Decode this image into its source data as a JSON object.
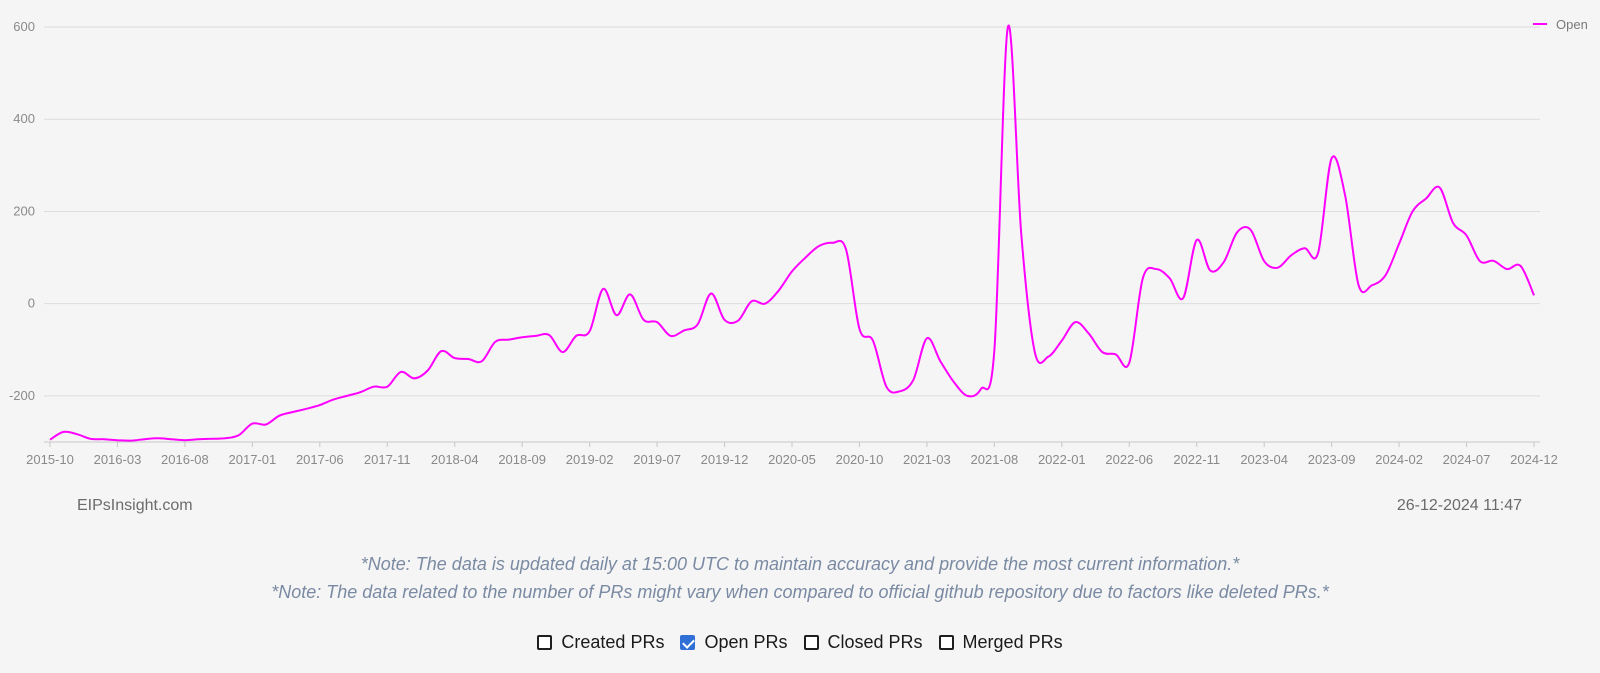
{
  "chart_data": {
    "type": "line",
    "series": [
      {
        "name": "Open",
        "color": "#ff00ff",
        "points": [
          [
            "2015-10",
            -295
          ],
          [
            "2015-11",
            -278
          ],
          [
            "2015-12",
            -283
          ],
          [
            "2016-01",
            -293
          ],
          [
            "2016-02",
            -294
          ],
          [
            "2016-03",
            -296
          ],
          [
            "2016-04",
            -297
          ],
          [
            "2016-05",
            -294
          ],
          [
            "2016-06",
            -292
          ],
          [
            "2016-07",
            -294
          ],
          [
            "2016-08",
            -296
          ],
          [
            "2016-09",
            -294
          ],
          [
            "2016-10",
            -293
          ],
          [
            "2016-11",
            -292
          ],
          [
            "2016-12",
            -285
          ],
          [
            "2017-01",
            -260
          ],
          [
            "2017-02",
            -262
          ],
          [
            "2017-03",
            -243
          ],
          [
            "2017-04",
            -235
          ],
          [
            "2017-05",
            -228
          ],
          [
            "2017-06",
            -220
          ],
          [
            "2017-07",
            -208
          ],
          [
            "2017-08",
            -200
          ],
          [
            "2017-09",
            -192
          ],
          [
            "2017-10",
            -180
          ],
          [
            "2017-11",
            -180
          ],
          [
            "2017-12",
            -148
          ],
          [
            "2018-01",
            -162
          ],
          [
            "2018-02",
            -145
          ],
          [
            "2018-03",
            -103
          ],
          [
            "2018-04",
            -118
          ],
          [
            "2018-05",
            -120
          ],
          [
            "2018-06",
            -125
          ],
          [
            "2018-07",
            -83
          ],
          [
            "2018-08",
            -78
          ],
          [
            "2018-09",
            -73
          ],
          [
            "2018-10",
            -70
          ],
          [
            "2018-11",
            -68
          ],
          [
            "2018-12",
            -105
          ],
          [
            "2019-01",
            -70
          ],
          [
            "2019-02",
            -60
          ],
          [
            "2019-03",
            32
          ],
          [
            "2019-04",
            -25
          ],
          [
            "2019-05",
            20
          ],
          [
            "2019-06",
            -35
          ],
          [
            "2019-07",
            -40
          ],
          [
            "2019-08",
            -70
          ],
          [
            "2019-09",
            -58
          ],
          [
            "2019-10",
            -45
          ],
          [
            "2019-11",
            22
          ],
          [
            "2019-12",
            -35
          ],
          [
            "2020-01",
            -37
          ],
          [
            "2020-02",
            5
          ],
          [
            "2020-03",
            0
          ],
          [
            "2020-04",
            28
          ],
          [
            "2020-05",
            70
          ],
          [
            "2020-06",
            100
          ],
          [
            "2020-07",
            125
          ],
          [
            "2020-08",
            132
          ],
          [
            "2020-09",
            118
          ],
          [
            "2020-10",
            -55
          ],
          [
            "2020-11",
            -80
          ],
          [
            "2020-12",
            -180
          ],
          [
            "2021-01",
            -190
          ],
          [
            "2021-02",
            -165
          ],
          [
            "2021-03",
            -75
          ],
          [
            "2021-04",
            -125
          ],
          [
            "2021-05",
            -170
          ],
          [
            "2021-06",
            -200
          ],
          [
            "2021-07",
            -185
          ],
          [
            "2021-08",
            -100
          ],
          [
            "2021-09",
            600
          ],
          [
            "2021-10",
            150
          ],
          [
            "2021-11",
            -105
          ],
          [
            "2021-12",
            -115
          ],
          [
            "2022-01",
            -80
          ],
          [
            "2022-02",
            -40
          ],
          [
            "2022-03",
            -65
          ],
          [
            "2022-04",
            -105
          ],
          [
            "2022-05",
            -110
          ],
          [
            "2022-06",
            -128
          ],
          [
            "2022-07",
            55
          ],
          [
            "2022-08",
            75
          ],
          [
            "2022-09",
            55
          ],
          [
            "2022-10",
            12
          ],
          [
            "2022-11",
            138
          ],
          [
            "2022-12",
            72
          ],
          [
            "2023-01",
            90
          ],
          [
            "2023-02",
            155
          ],
          [
            "2023-03",
            160
          ],
          [
            "2023-04",
            92
          ],
          [
            "2023-05",
            78
          ],
          [
            "2023-06",
            105
          ],
          [
            "2023-07",
            120
          ],
          [
            "2023-08",
            110
          ],
          [
            "2023-09",
            315
          ],
          [
            "2023-10",
            235
          ],
          [
            "2023-11",
            40
          ],
          [
            "2023-12",
            40
          ],
          [
            "2024-01",
            62
          ],
          [
            "2024-02",
            130
          ],
          [
            "2024-03",
            200
          ],
          [
            "2024-04",
            228
          ],
          [
            "2024-05",
            252
          ],
          [
            "2024-06",
            175
          ],
          [
            "2024-07",
            148
          ],
          [
            "2024-08",
            92
          ],
          [
            "2024-09",
            93
          ],
          [
            "2024-10",
            75
          ],
          [
            "2024-11",
            82
          ],
          [
            "2024-12",
            18
          ]
        ]
      }
    ],
    "x_ticks": [
      "2015-10",
      "2016-03",
      "2016-08",
      "2017-01",
      "2017-06",
      "2017-11",
      "2018-04",
      "2018-09",
      "2019-02",
      "2019-07",
      "2019-12",
      "2020-05",
      "2020-10",
      "2021-03",
      "2021-08",
      "2022-01",
      "2022-06",
      "2022-11",
      "2023-04",
      "2023-09",
      "2024-02",
      "2024-07",
      "2024-12"
    ],
    "y_ticks": [
      -200,
      0,
      200,
      400,
      600
    ],
    "ylim": [
      -300,
      600
    ],
    "legend_position": "top-right",
    "grid": "horizontal"
  },
  "footer": {
    "site": "EIPsInsight.com",
    "timestamp": "26-12-2024 11:47"
  },
  "notes": [
    "*Note: The data is updated daily at 15:00 UTC to maintain accuracy and provide the most current information.*",
    "*Note: The data related to the number of PRs might vary when compared to official github repository due to factors like deleted PRs.*"
  ],
  "toggles": [
    {
      "label": "Created PRs",
      "checked": false
    },
    {
      "label": "Open PRs",
      "checked": true
    },
    {
      "label": "Closed PRs",
      "checked": false
    },
    {
      "label": "Merged PRs",
      "checked": false
    }
  ]
}
